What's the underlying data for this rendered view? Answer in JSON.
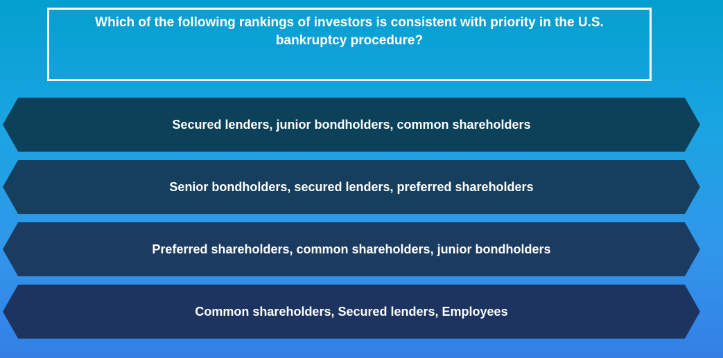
{
  "question": {
    "text": "Which of the following rankings of investors is consistent with priority in the U.S. bankruptcy procedure?"
  },
  "options": [
    {
      "label": "Secured lenders, junior bondholders, common shareholders",
      "color": "#0d4159"
    },
    {
      "label": "Senior bondholders, secured lenders, preferred shareholders",
      "color": "#153f5d"
    },
    {
      "label": "Preferred shareholders, common shareholders, junior bondholders",
      "color": "#1c3b60"
    },
    {
      "label": "Common shareholders, Secured lenders, Employees",
      "color": "#1c345f"
    }
  ],
  "theme": {
    "background_top": "#049fcf",
    "background_bottom": "#347fe6",
    "text_color": "#ffffff"
  }
}
